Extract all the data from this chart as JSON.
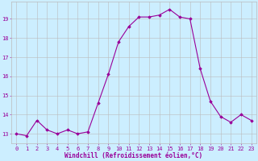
{
  "x": [
    0,
    1,
    2,
    3,
    4,
    5,
    6,
    7,
    8,
    9,
    10,
    11,
    12,
    13,
    14,
    15,
    16,
    17,
    18,
    19,
    20,
    21,
    22,
    23
  ],
  "y": [
    13.0,
    12.9,
    13.7,
    13.2,
    13.0,
    13.2,
    13.0,
    13.1,
    14.6,
    16.1,
    17.8,
    18.6,
    19.1,
    19.1,
    19.2,
    19.5,
    19.1,
    19.0,
    16.4,
    14.7,
    13.9,
    13.6,
    14.0,
    13.7
  ],
  "line_color": "#990099",
  "marker": "D",
  "marker_size": 1.8,
  "line_width": 0.8,
  "bg_color": "#cceeff",
  "grid_color": "#bbbbbb",
  "xlabel": "Windchill (Refroidissement éolien,°C)",
  "xlabel_color": "#990099",
  "xlabel_fontsize": 5.5,
  "tick_color": "#990099",
  "tick_fontsize": 5.0,
  "ylim": [
    12.5,
    19.9
  ],
  "xlim": [
    -0.5,
    23.5
  ],
  "yticks": [
    13,
    14,
    15,
    16,
    17,
    18,
    19
  ]
}
